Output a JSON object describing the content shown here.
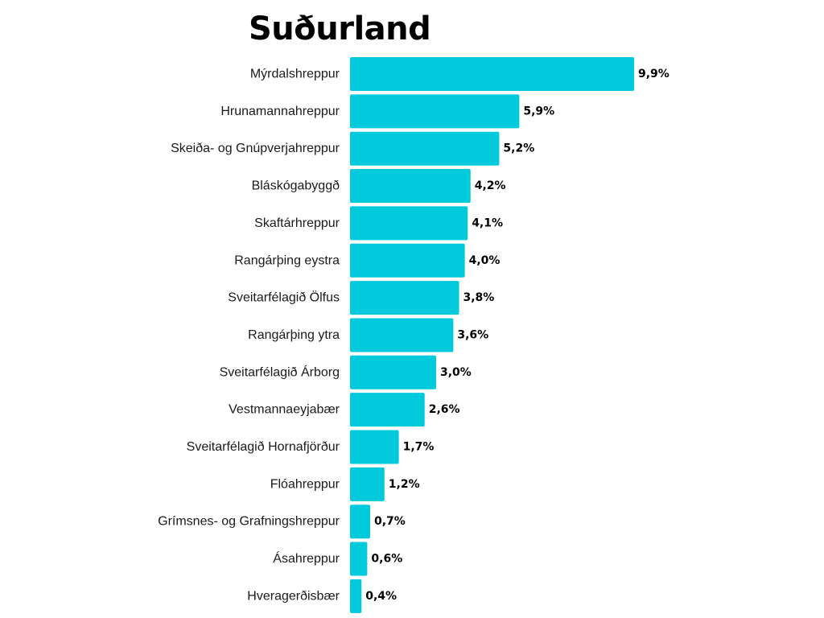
{
  "title": "Suðurland",
  "colors": {
    "bar": "#00CADC",
    "background": "#ffffff"
  },
  "chart_data": {
    "type": "bar",
    "orientation": "horizontal",
    "title": "Suðurland",
    "xlabel": "",
    "ylabel": "",
    "xlim": [
      0,
      9.9
    ],
    "grid": false,
    "legend": "none",
    "categories": [
      "Mýrdalshreppur",
      "Hrunamannahreppur",
      "Skeiða- og Gnúpverjahreppur",
      "Bláskógabyggð",
      "Skaftárhreppur",
      "Rangárþing eystra",
      "Sveitarfélagið Ölfus",
      "Rangárþing ytra",
      "Sveitarfélagið Árborg",
      "Vestmannaeyjabær",
      "Sveitarfélagið Hornafjörður",
      "Flóahreppur",
      "Grímsnes- og Grafningshreppur",
      "Ásahreppur",
      "Hveragerðisbær"
    ],
    "values": [
      9.9,
      5.9,
      5.2,
      4.2,
      4.1,
      4.0,
      3.8,
      3.6,
      3.0,
      2.6,
      1.7,
      1.2,
      0.7,
      0.6,
      0.4
    ],
    "value_labels": [
      "9,9%",
      "5,9%",
      "5,2%",
      "4,2%",
      "4,1%",
      "4,0%",
      "3,8%",
      "3,6%",
      "3,0%",
      "2,6%",
      "1,7%",
      "1,2%",
      "0,7%",
      "0,6%",
      "0,4%"
    ]
  }
}
